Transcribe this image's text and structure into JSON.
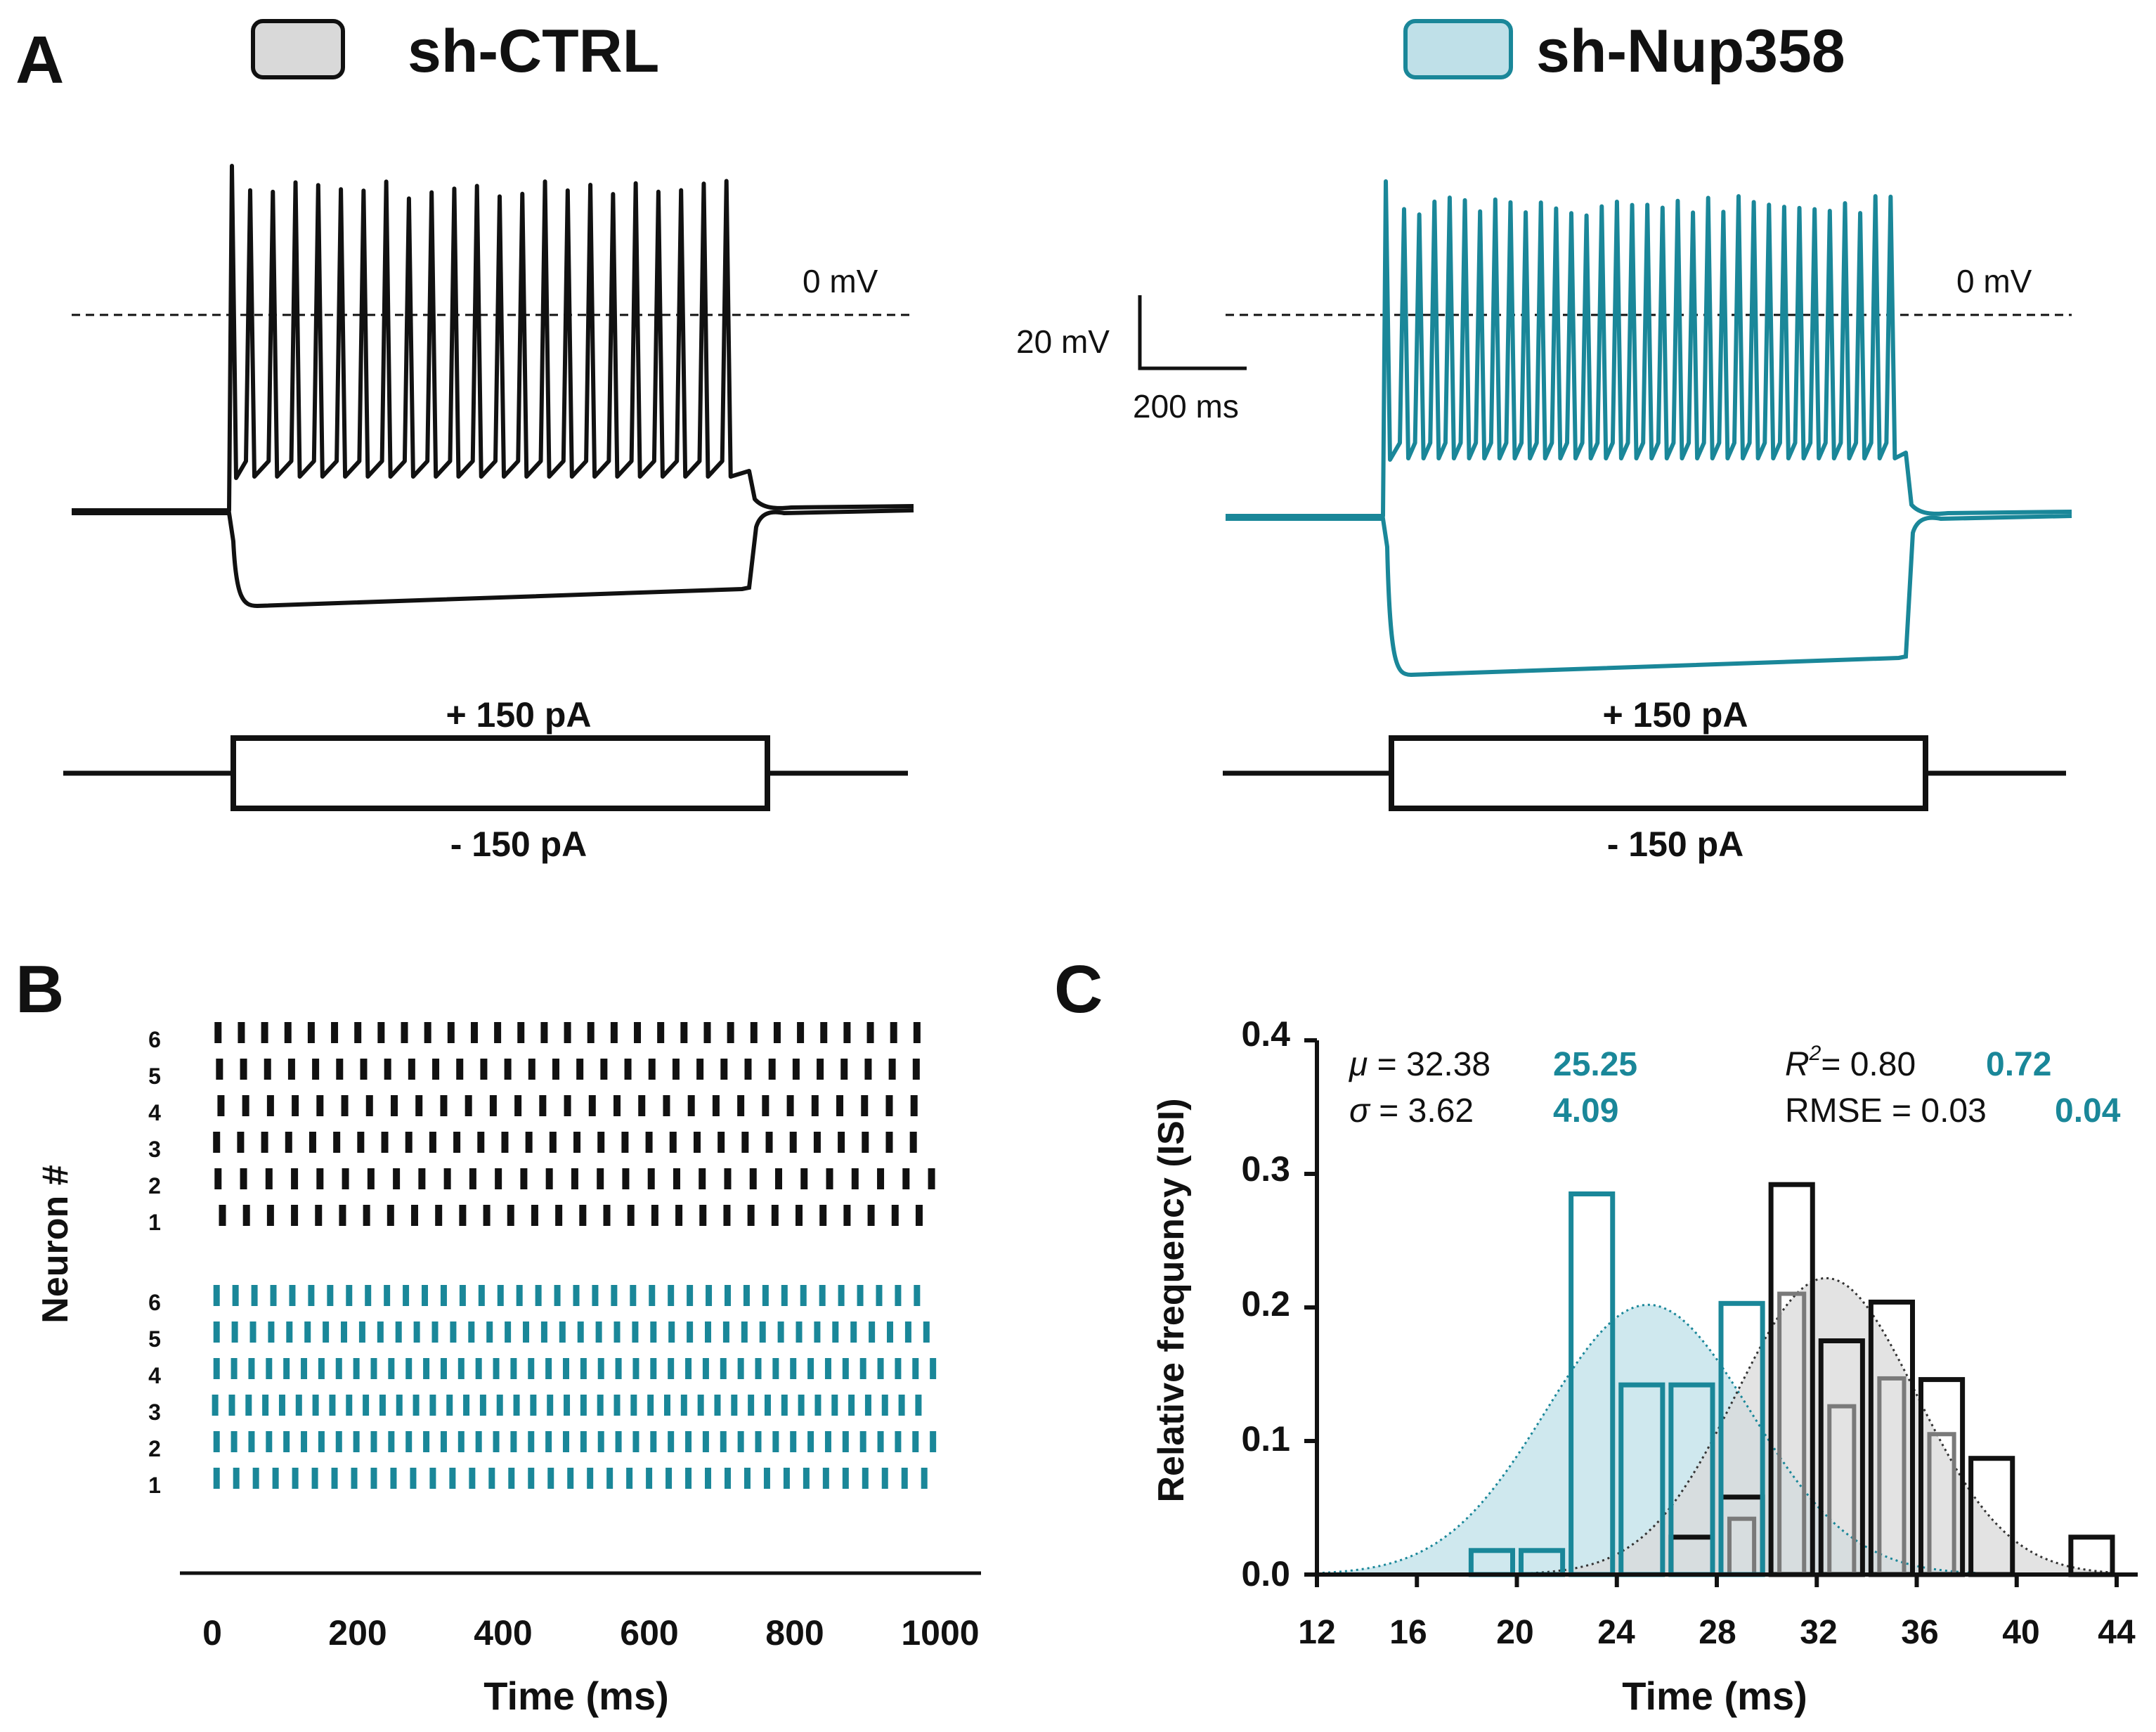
{
  "colors": {
    "ctrl": "#111111",
    "nup": "#1a8799",
    "nup_fill": "#bfe0e8",
    "ctrl_fill": "#d9d9d9",
    "grey_dark": "#7a7a7a"
  },
  "panels": {
    "a": "A",
    "b": "B",
    "c": "C"
  },
  "legend": {
    "ctrl": "sh-CTRL",
    "nup": "sh-Nup358"
  },
  "traces": {
    "zero_ctrl": "0 mV",
    "zero_nup": "0 mV",
    "scale_v": "20 mV",
    "scale_t": "200 ms"
  },
  "stim": {
    "ctrl_pos": "+ 150 pA",
    "ctrl_neg": "- 150 pA",
    "nup_pos": "+ 150 pA",
    "nup_neg": "- 150 pA"
  },
  "chart_data": [
    {
      "type": "raster",
      "ylabel": "Neuron #",
      "xlabel": "Time (ms)",
      "xlim": [
        0,
        1000
      ],
      "xticks": [
        "0",
        "200",
        "400",
        "600",
        "800",
        "1000"
      ],
      "ctrl_labels": [
        "6",
        "5",
        "4",
        "3",
        "2",
        "1"
      ],
      "nup_labels": [
        "6",
        "5",
        "4",
        "3",
        "2",
        "1"
      ],
      "ctrl_isi": [
        32,
        33,
        34,
        33,
        35,
        33
      ],
      "ctrl_start": [
        8,
        10,
        12,
        6,
        8,
        14
      ],
      "nup_isi": [
        26,
        25,
        24,
        23,
        24,
        27
      ],
      "nup_start": [
        6,
        6,
        6,
        4,
        6,
        6
      ]
    },
    {
      "type": "histogram",
      "xlabel": "Time (ms)",
      "ylabel": "Relative frequency (ISI)",
      "xlim": [
        12,
        44
      ],
      "ylim": [
        0,
        0.4
      ],
      "xticks": [
        "12",
        "16",
        "20",
        "24",
        "28",
        "32",
        "36",
        "40",
        "44"
      ],
      "yticks": [
        "0.0",
        "0.1",
        "0.2",
        "0.3",
        "0.4"
      ],
      "bin_width": 2,
      "series": [
        {
          "name": "sh-CTRL",
          "bins_start": [
            26,
            28,
            30,
            32,
            34,
            36,
            38,
            40,
            42
          ],
          "values": [
            0.028,
            0.058,
            0.292,
            0.175,
            0.204,
            0.146,
            0.087,
            0.0,
            0.028
          ],
          "mu": 32.38,
          "sigma": 3.62
        },
        {
          "name": "sh-Nup358",
          "bins_start": [
            16,
            18,
            20,
            22,
            24,
            26,
            28
          ],
          "values": [
            0.0,
            0.018,
            0.018,
            0.285,
            0.142,
            0.142,
            0.203
          ],
          "mu": 25.25,
          "sigma": 4.09
        }
      ],
      "stats": {
        "mu_sym": "μ",
        "mu_ctrl": "= 32.38",
        "mu_nup": "25.25",
        "sigma_sym": "σ",
        "sigma_ctrl": "= 3.62",
        "sigma_nup": "4.09",
        "r_sym": "R",
        "r_sup": "2",
        "r_ctrl": "= 0.80",
        "r_nup": "0.72",
        "rmse_ctrl": "RMSE = 0.03",
        "rmse_nup": "0.04"
      }
    }
  ]
}
